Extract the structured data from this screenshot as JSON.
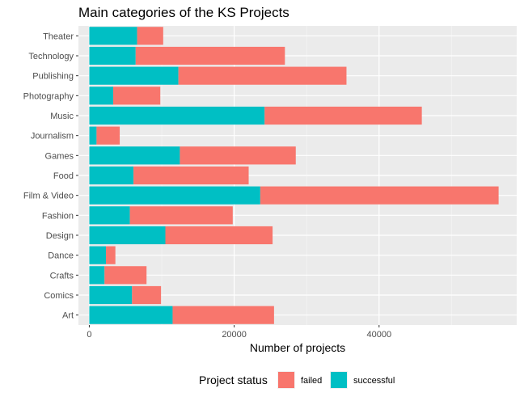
{
  "chart_data": {
    "type": "bar",
    "orientation": "horizontal",
    "stacked": true,
    "title": "Main categories of the KS Projects",
    "xlabel": "Number of projects",
    "ylabel": "",
    "xlim": [
      -1500,
      59000
    ],
    "xticks": [
      0,
      20000,
      40000
    ],
    "xtick_labels": [
      "0",
      "20000",
      "40000"
    ],
    "grid": true,
    "legend": {
      "title": "Project status",
      "position": "bottom"
    },
    "categories": [
      "Theater",
      "Technology",
      "Publishing",
      "Photography",
      "Music",
      "Journalism",
      "Games",
      "Food",
      "Film & Video",
      "Fashion",
      "Design",
      "Dance",
      "Crafts",
      "Comics",
      "Art"
    ],
    "series": [
      {
        "name": "successful",
        "color": "#00BFC4",
        "values": [
          6600,
          6400,
          12300,
          3300,
          24200,
          1000,
          12500,
          6100,
          23600,
          5600,
          10500,
          2300,
          2100,
          5900,
          11500
        ]
      },
      {
        "name": "failed",
        "color": "#F8766D",
        "values": [
          3600,
          20600,
          23200,
          6500,
          21700,
          3200,
          16000,
          15900,
          32900,
          14200,
          14800,
          1300,
          5800,
          4000,
          14000
        ]
      }
    ]
  }
}
